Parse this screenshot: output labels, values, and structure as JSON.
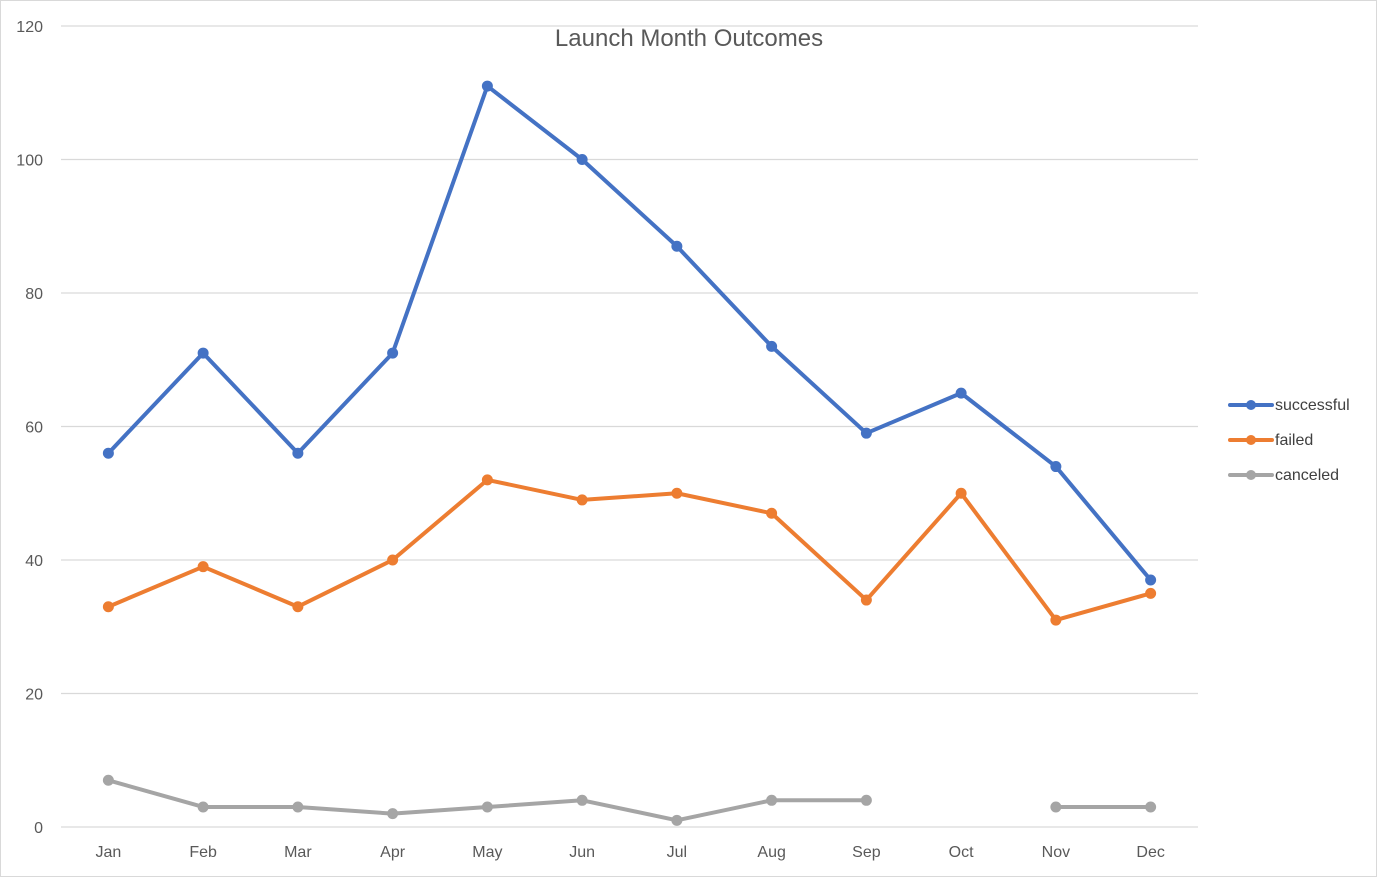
{
  "chart_data": {
    "type": "line",
    "title": "Launch Month Outcomes",
    "xlabel": "",
    "ylabel": "",
    "categories": [
      "Jan",
      "Feb",
      "Mar",
      "Apr",
      "May",
      "Jun",
      "Jul",
      "Aug",
      "Sep",
      "Oct",
      "Nov",
      "Dec"
    ],
    "ylim": [
      0,
      120
    ],
    "yticks": [
      "0",
      "20",
      "40",
      "60",
      "80",
      "100",
      "120"
    ],
    "grid": true,
    "legend_position": "right",
    "series": [
      {
        "name": "successful",
        "color": "#4472C4",
        "values": [
          56,
          71,
          56,
          71,
          111,
          100,
          87,
          72,
          59,
          65,
          54,
          37
        ]
      },
      {
        "name": "failed",
        "color": "#ED7D31",
        "values": [
          33,
          39,
          33,
          40,
          52,
          49,
          50,
          47,
          34,
          50,
          31,
          35
        ]
      },
      {
        "name": "canceled",
        "color": "#A5A5A5",
        "values": [
          7,
          3,
          3,
          2,
          3,
          4,
          1,
          4,
          4,
          null,
          3,
          3
        ]
      }
    ]
  }
}
